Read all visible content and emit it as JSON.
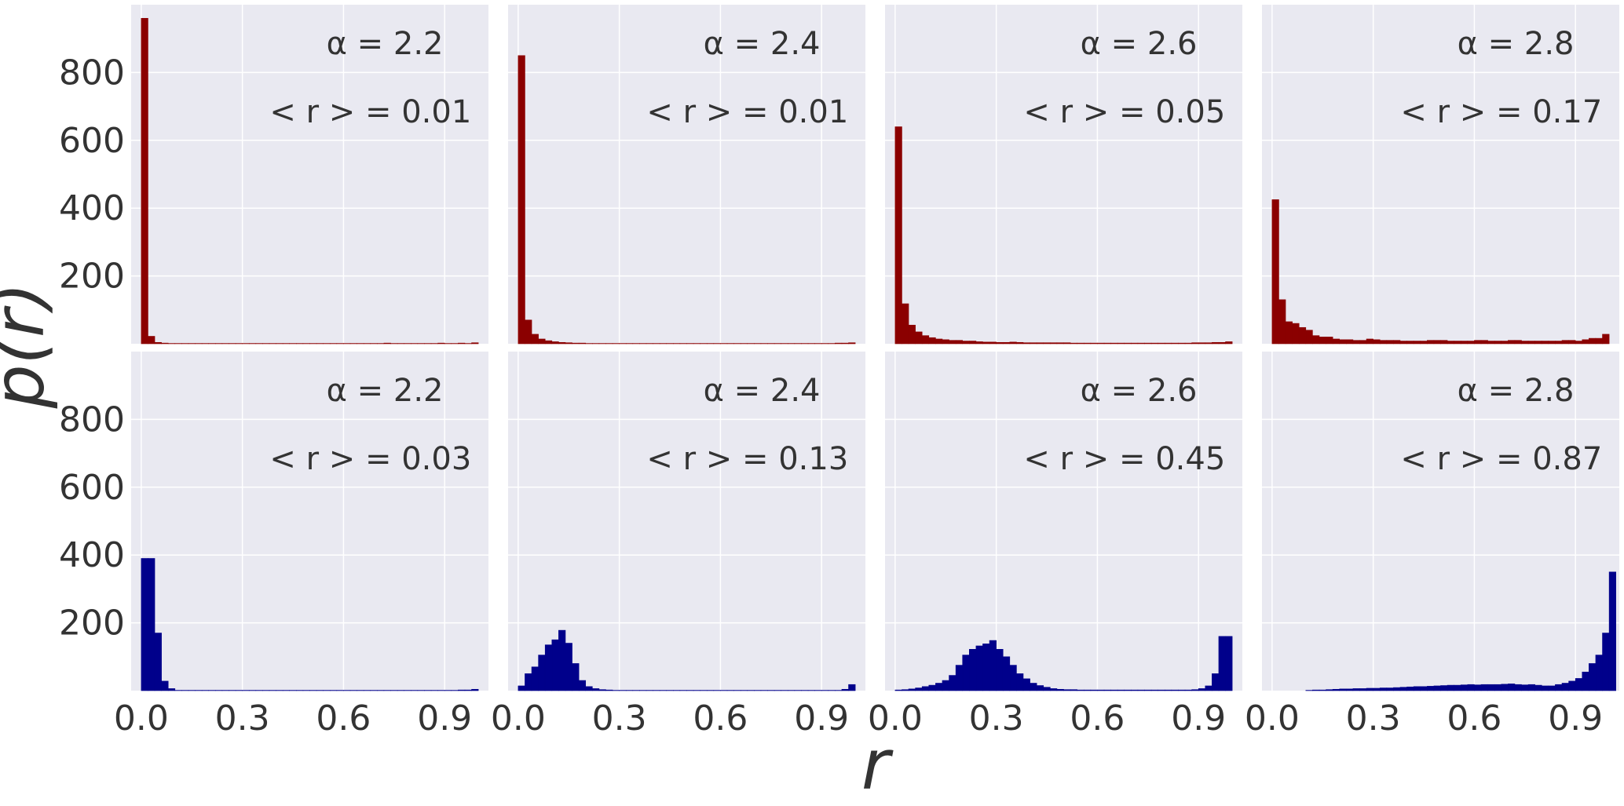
{
  "figure": {
    "ylabel": "p(r)",
    "xlabel": "r",
    "colors": {
      "top_row": "#8b0000",
      "bottom_row": "#00008b",
      "panel_bg": "#e9e9f1",
      "grid": "#ffffff",
      "text": "#333333"
    },
    "xticks": [
      "0.0",
      "0.3",
      "0.6",
      "0.9"
    ],
    "yticks": [
      "200",
      "400",
      "600",
      "800"
    ]
  },
  "chart_data": [
    {
      "type": "bar",
      "row": "top",
      "alpha_label": "α = 2.2",
      "mean_label": "< r > = 0.01",
      "bin_width": 0.02,
      "xlim": [
        -0.03,
        1.03
      ],
      "ylim": [
        0,
        1000
      ],
      "values": [
        960,
        22,
        4,
        2,
        1,
        1,
        1,
        1,
        1,
        1,
        1,
        1,
        1,
        1,
        1,
        1,
        1,
        1,
        1,
        1,
        1,
        1,
        1,
        1,
        1,
        1,
        1,
        1,
        1,
        1,
        1,
        1,
        1,
        1,
        1,
        1,
        2,
        1,
        1,
        1,
        1,
        1,
        1,
        1,
        2,
        1,
        1,
        2,
        1,
        3
      ]
    },
    {
      "type": "bar",
      "row": "top",
      "alpha_label": "α = 2.4",
      "mean_label": "< r > = 0.01",
      "bin_width": 0.02,
      "xlim": [
        -0.03,
        1.03
      ],
      "ylim": [
        0,
        1000
      ],
      "values": [
        850,
        70,
        28,
        14,
        9,
        6,
        4,
        3,
        2,
        2,
        1,
        1,
        1,
        1,
        1,
        1,
        1,
        1,
        1,
        1,
        1,
        1,
        1,
        1,
        1,
        1,
        1,
        1,
        1,
        1,
        1,
        1,
        1,
        1,
        1,
        1,
        1,
        1,
        1,
        1,
        1,
        1,
        1,
        1,
        1,
        1,
        1,
        2,
        2,
        3
      ]
    },
    {
      "type": "bar",
      "row": "top",
      "alpha_label": "α = 2.6",
      "mean_label": "< r > = 0.05",
      "bin_width": 0.02,
      "xlim": [
        -0.03,
        1.03
      ],
      "ylim": [
        0,
        1000
      ],
      "values": [
        640,
        118,
        55,
        35,
        24,
        18,
        14,
        12,
        10,
        10,
        8,
        8,
        6,
        5,
        5,
        4,
        4,
        5,
        4,
        3,
        3,
        3,
        3,
        3,
        3,
        3,
        2,
        2,
        2,
        2,
        2,
        2,
        2,
        2,
        2,
        2,
        2,
        2,
        2,
        2,
        2,
        2,
        2,
        2,
        3,
        3,
        3,
        4,
        4,
        6
      ]
    },
    {
      "type": "bar",
      "row": "top",
      "alpha_label": "α = 2.8",
      "mean_label": "< r > = 0.17",
      "bin_width": 0.02,
      "xlim": [
        -0.03,
        1.03
      ],
      "ylim": [
        0,
        1000
      ],
      "values": [
        425,
        130,
        65,
        60,
        48,
        40,
        24,
        20,
        20,
        14,
        12,
        12,
        10,
        10,
        14,
        12,
        10,
        10,
        10,
        8,
        8,
        8,
        8,
        10,
        10,
        10,
        8,
        8,
        8,
        8,
        10,
        10,
        8,
        8,
        8,
        10,
        10,
        8,
        8,
        8,
        8,
        8,
        8,
        10,
        10,
        8,
        12,
        16,
        16,
        28
      ]
    },
    {
      "type": "bar",
      "row": "bottom",
      "alpha_label": "α = 2.2",
      "mean_label": "< r > = 0.03",
      "bin_width": 0.02,
      "xlim": [
        -0.03,
        1.03
      ],
      "ylim": [
        0,
        1000
      ],
      "values": [
        390,
        390,
        170,
        28,
        6,
        1,
        1,
        1,
        1,
        1,
        1,
        1,
        1,
        1,
        1,
        1,
        1,
        1,
        1,
        1,
        1,
        1,
        1,
        1,
        1,
        1,
        1,
        1,
        1,
        1,
        1,
        1,
        1,
        1,
        1,
        1,
        1,
        1,
        1,
        1,
        1,
        1,
        1,
        1,
        1,
        1,
        1,
        2,
        2,
        4
      ]
    },
    {
      "type": "bar",
      "row": "bottom",
      "alpha_label": "α = 2.4",
      "mean_label": "< r > = 0.13",
      "bin_width": 0.02,
      "xlim": [
        -0.03,
        1.03
      ],
      "ylim": [
        0,
        1000
      ],
      "values": [
        14,
        50,
        70,
        105,
        135,
        150,
        178,
        140,
        80,
        30,
        12,
        6,
        3,
        2,
        1,
        1,
        1,
        1,
        1,
        1,
        1,
        1,
        1,
        1,
        1,
        1,
        1,
        1,
        1,
        1,
        1,
        1,
        1,
        1,
        1,
        1,
        1,
        1,
        1,
        1,
        1,
        1,
        1,
        1,
        1,
        1,
        1,
        1,
        4,
        18
      ]
    },
    {
      "type": "bar",
      "row": "bottom",
      "alpha_label": "α = 2.6",
      "mean_label": "< r > = 0.45",
      "bin_width": 0.02,
      "xlim": [
        -0.03,
        1.03
      ],
      "ylim": [
        0,
        1000
      ],
      "values": [
        2,
        3,
        5,
        8,
        12,
        16,
        22,
        30,
        45,
        75,
        105,
        122,
        132,
        138,
        148,
        122,
        100,
        75,
        50,
        35,
        22,
        15,
        10,
        6,
        4,
        3,
        3,
        2,
        2,
        2,
        2,
        2,
        2,
        2,
        2,
        2,
        2,
        2,
        2,
        2,
        2,
        2,
        2,
        2,
        3,
        6,
        14,
        50,
        160,
        160
      ]
    },
    {
      "type": "bar",
      "row": "bottom",
      "alpha_label": "α = 2.8",
      "mean_label": "< r > = 0.87",
      "bin_width": 0.02,
      "xlim": [
        -0.03,
        1.03
      ],
      "ylim": [
        0,
        1000
      ],
      "values": [
        0,
        0,
        0,
        0,
        0,
        1,
        2,
        2,
        3,
        4,
        5,
        5,
        6,
        6,
        7,
        7,
        8,
        8,
        9,
        10,
        11,
        12,
        12,
        13,
        14,
        15,
        16,
        16,
        17,
        18,
        17,
        18,
        18,
        18,
        19,
        20,
        18,
        17,
        18,
        16,
        14,
        14,
        18,
        22,
        28,
        36,
        55,
        80,
        105,
        170,
        350
      ]
    }
  ]
}
